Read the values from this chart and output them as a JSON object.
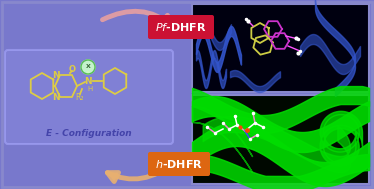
{
  "bg_color": "#7878cc",
  "panel_border": "#8888cc",
  "left_panel": {
    "chem_box_bg": "#8888dd",
    "chem_box_border": "#aaaaff",
    "chem_text_color": "#ddcc44",
    "N_color": "#ddcc44",
    "config_text": "E - Configuration",
    "config_text_color": "#4444aa"
  },
  "pf_label": "$\\it{Pf}$-DHFR",
  "h_label": "$\\it{h}$-DHFR",
  "pf_box_color": "#cc1133",
  "h_box_color": "#dd6611",
  "arrow_color_top": "#e8a0a0",
  "arrow_color_bottom": "#e8b070",
  "top_right_bg": "#000010",
  "bottom_right_bg": "#000800",
  "top_ribbon_color": "#3355cc",
  "bottom_ribbon_color": "#00dd00",
  "mol_yellow": "#cccc44",
  "mol_purple": "#cc33cc",
  "mol_white": "#ffffff",
  "mol_pink": "#ee88cc"
}
